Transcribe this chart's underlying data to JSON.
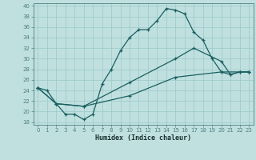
{
  "xlabel": "Humidex (Indice chaleur)",
  "bg_color": "#c0e0e0",
  "grid_color": "#a0cccc",
  "line_color": "#1a5f5f",
  "spine_color": "#508080",
  "xlim": [
    -0.5,
    23.5
  ],
  "ylim": [
    17.5,
    40.5
  ],
  "xticks": [
    0,
    1,
    2,
    3,
    4,
    5,
    6,
    7,
    8,
    9,
    10,
    11,
    12,
    13,
    14,
    15,
    16,
    17,
    18,
    19,
    20,
    21,
    22,
    23
  ],
  "yticks": [
    18,
    20,
    22,
    24,
    26,
    28,
    30,
    32,
    34,
    36,
    38,
    40
  ],
  "line1_x": [
    0,
    1,
    2,
    3,
    4,
    5,
    6,
    7,
    8,
    9,
    10,
    11,
    12,
    13,
    14,
    15,
    16,
    17,
    18,
    19,
    20,
    21,
    22,
    23
  ],
  "line1_y": [
    24.5,
    24.0,
    21.5,
    19.5,
    19.5,
    18.5,
    19.5,
    25.2,
    28.0,
    31.5,
    34.0,
    35.5,
    35.5,
    37.2,
    39.5,
    39.2,
    38.5,
    35.0,
    33.5,
    30.0,
    27.5,
    27.0,
    27.5,
    27.5
  ],
  "line2_x": [
    0,
    2,
    5,
    10,
    15,
    17,
    20,
    21,
    22,
    23
  ],
  "line2_y": [
    24.5,
    21.5,
    21.0,
    25.5,
    30.0,
    32.0,
    29.5,
    27.0,
    27.5,
    27.5
  ],
  "line3_x": [
    0,
    2,
    5,
    10,
    15,
    20,
    23
  ],
  "line3_y": [
    24.5,
    21.5,
    21.0,
    23.0,
    26.5,
    27.5,
    27.5
  ]
}
